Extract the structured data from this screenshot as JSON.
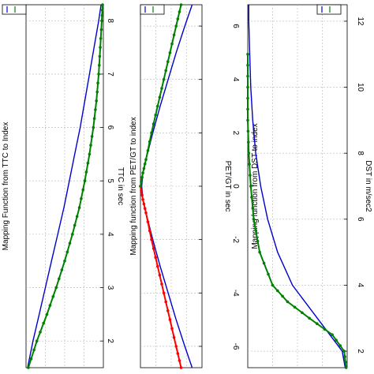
{
  "chart_data": [
    {
      "type": "line",
      "title": "Mapping Function from TTC to Index",
      "xlabel": "TTC in sec",
      "ylabel": "",
      "xlim": [
        1.5,
        8.3
      ],
      "ylim": [
        0,
        1
      ],
      "xticks": [
        "2",
        "3",
        "4",
        "5",
        "6",
        "7",
        "8"
      ],
      "grid": true,
      "legend_position": "top",
      "series": [
        {
          "name": "",
          "color": "#0000cc",
          "marker": "none",
          "x": [
            1.5,
            2.0,
            2.5,
            3.0,
            3.5,
            4.0,
            4.5,
            5.0,
            5.5,
            6.0,
            6.5,
            7.0,
            7.5,
            8.0,
            8.3
          ],
          "y": [
            0.02,
            0.09,
            0.17,
            0.25,
            0.33,
            0.41,
            0.49,
            0.56,
            0.63,
            0.7,
            0.76,
            0.82,
            0.88,
            0.94,
            0.97
          ]
        },
        {
          "name": "",
          "color": "#008000",
          "marker": "dot",
          "x": [
            1.5,
            2.0,
            2.5,
            3.0,
            3.5,
            4.0,
            4.5,
            5.0,
            5.5,
            6.0,
            6.5,
            7.0,
            7.5,
            8.0,
            8.3
          ],
          "y": [
            0.03,
            0.14,
            0.27,
            0.39,
            0.5,
            0.6,
            0.69,
            0.76,
            0.82,
            0.87,
            0.91,
            0.94,
            0.96,
            0.98,
            0.99
          ]
        }
      ]
    },
    {
      "type": "line",
      "title": "Mapping function from PET/GT to index",
      "xlabel": "PET/GT in sec",
      "ylabel": "",
      "xlim": [
        -6.8,
        6.8
      ],
      "ylim": [
        0,
        1
      ],
      "xticks": [
        "-6",
        "-4",
        "-2",
        "0",
        "2",
        "4",
        "6"
      ],
      "grid": true,
      "legend_position": "top",
      "series": [
        {
          "name": "",
          "color": "#0000cc",
          "marker": "none",
          "x": [
            -6.8,
            -6,
            -5,
            -4,
            -3,
            -2,
            -1,
            -0.5,
            0,
            0.5,
            1,
            2,
            3,
            4,
            5,
            6,
            6.8
          ],
          "y": [
            0.84,
            0.72,
            0.58,
            0.45,
            0.32,
            0.2,
            0.09,
            0.04,
            0.02,
            0.04,
            0.09,
            0.2,
            0.32,
            0.45,
            0.58,
            0.72,
            0.84
          ]
        },
        {
          "name": "",
          "color": "#ff0000",
          "marker": "dot",
          "x": [
            -6.8,
            -6,
            -5,
            -4,
            -3,
            -2,
            -1,
            -0.5,
            0
          ],
          "y": [
            0.66,
            0.58,
            0.48,
            0.38,
            0.28,
            0.18,
            0.09,
            0.04,
            0.0
          ]
        },
        {
          "name": "",
          "color": "#008000",
          "marker": "dot",
          "x": [
            0,
            0.5,
            1,
            2,
            3,
            4,
            5,
            6,
            6.8
          ],
          "y": [
            0.0,
            0.04,
            0.09,
            0.18,
            0.28,
            0.38,
            0.48,
            0.58,
            0.66
          ]
        }
      ]
    },
    {
      "type": "line",
      "title": "Mapping function from DST to index",
      "xlabel": "DST in m/sec2",
      "ylabel": "",
      "xlim": [
        1.5,
        12.5
      ],
      "ylim": [
        0,
        1
      ],
      "xticks": [
        "2",
        "4",
        "6",
        "8",
        "10",
        "12"
      ],
      "grid": true,
      "legend_position": "top",
      "series": [
        {
          "name": "",
          "color": "#0000cc",
          "marker": "none",
          "x": [
            1.5,
            2,
            3,
            4,
            5,
            6,
            7,
            8,
            9,
            10,
            11,
            12,
            12.5
          ],
          "y": [
            0.98,
            0.95,
            0.7,
            0.45,
            0.3,
            0.2,
            0.13,
            0.08,
            0.05,
            0.03,
            0.02,
            0.01,
            0.01
          ]
        },
        {
          "name": "",
          "color": "#008000",
          "marker": "dot",
          "x": [
            1.5,
            2,
            2.5,
            3,
            3.5,
            4,
            5,
            6,
            7,
            8,
            9,
            10,
            11
          ],
          "y": [
            0.99,
            0.97,
            0.85,
            0.62,
            0.4,
            0.25,
            0.12,
            0.06,
            0.03,
            0.01,
            0.0,
            0.0,
            0.0
          ]
        }
      ]
    }
  ]
}
